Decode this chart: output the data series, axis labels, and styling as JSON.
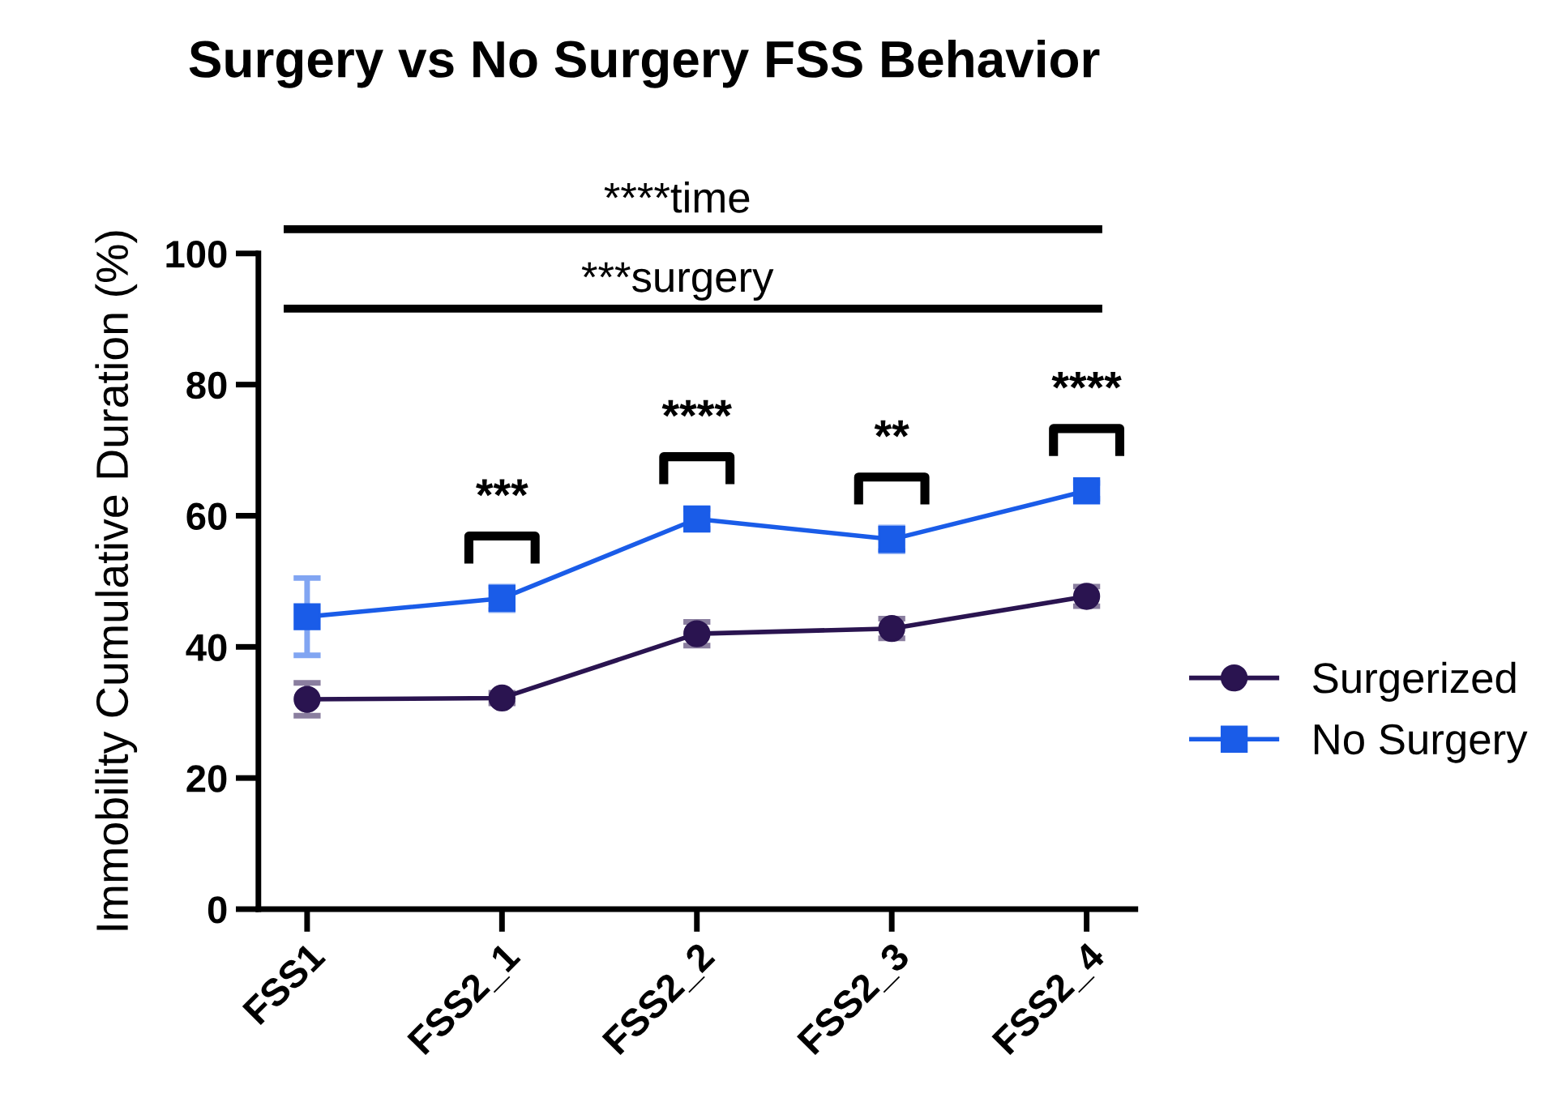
{
  "chart_data": {
    "type": "line",
    "title": "Surgery vs No Surgery FSS Behavior",
    "ylabel": "Immobility Cumulative Duration (%)",
    "categories": [
      "FSS1",
      "FSS2_1",
      "FSS2_2",
      "FSS2_3",
      "FSS2_4"
    ],
    "series": [
      {
        "name": "Surgerized",
        "color": "#2a1450",
        "marker": "circle",
        "values": [
          32,
          32.2,
          42,
          42.8,
          47.7
        ],
        "errors": [
          2.5,
          0.8,
          1.8,
          1.5,
          1.5
        ]
      },
      {
        "name": "No Surgery",
        "color": "#1a5ce8",
        "marker": "square",
        "values": [
          44.6,
          47.4,
          59.5,
          56.4,
          63.8
        ],
        "errors": [
          5.9,
          1.8,
          1.5,
          1.8,
          1.2
        ]
      }
    ],
    "ylim": [
      0,
      100
    ],
    "yticks": [
      0,
      20,
      40,
      60,
      80,
      100
    ],
    "grid": false,
    "legend": "right",
    "ref_lines": [
      {
        "axis": "y",
        "value": 91.6,
        "label": "***surgery",
        "color": "#000000"
      }
    ],
    "annotations": [
      "****time",
      "***",
      "****",
      "**",
      "****"
    ]
  }
}
